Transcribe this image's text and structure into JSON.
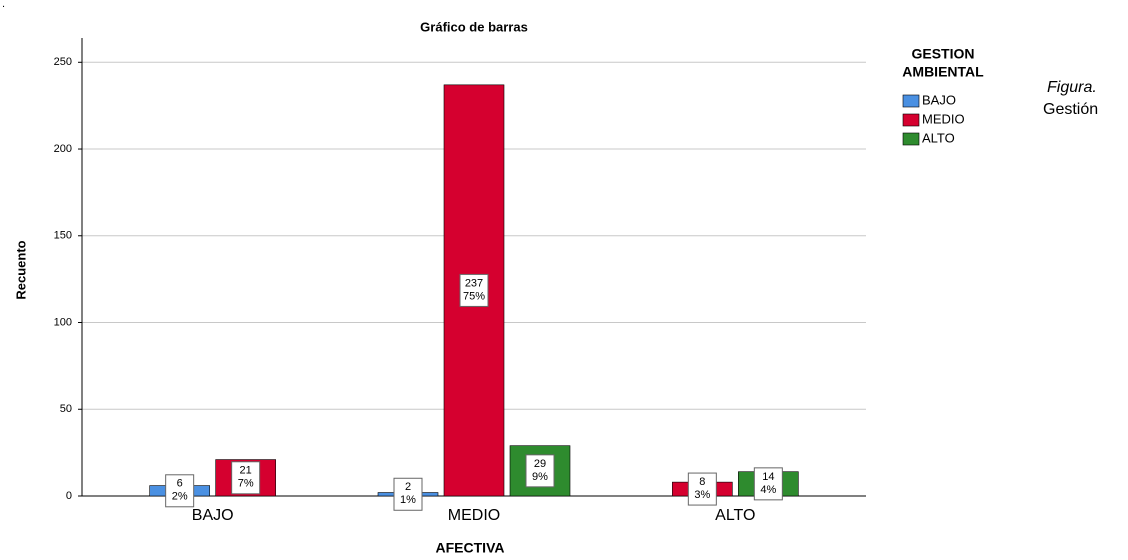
{
  "chart_data": {
    "type": "bar",
    "title": "Gráfico de barras",
    "x_label": "AFECTIVA",
    "y_label": "Recuento",
    "legend_title": [
      "GESTION",
      "AMBIENTAL"
    ],
    "legend_position": "right",
    "categories": [
      "BAJO",
      "MEDIO",
      "ALTO"
    ],
    "series": [
      {
        "name": "BAJO",
        "color": "#4a90e2",
        "values": [
          6,
          2,
          null
        ],
        "percent_labels": [
          "2%",
          "1%",
          null
        ]
      },
      {
        "name": "MEDIO",
        "color": "#d5002f",
        "values": [
          21,
          237,
          8
        ],
        "percent_labels": [
          "7%",
          "75%",
          "3%"
        ]
      },
      {
        "name": "ALTO",
        "color": "#2e8b2e",
        "values": [
          null,
          29,
          14
        ],
        "percent_labels": [
          null,
          "9%",
          "4%"
        ]
      }
    ],
    "ylim": [
      0,
      264
    ],
    "yticks": [
      0,
      50,
      100,
      150,
      200,
      250
    ],
    "grid": true
  },
  "side_text": {
    "mark": ".",
    "figure": "Figura.",
    "caption": "Gestión"
  }
}
